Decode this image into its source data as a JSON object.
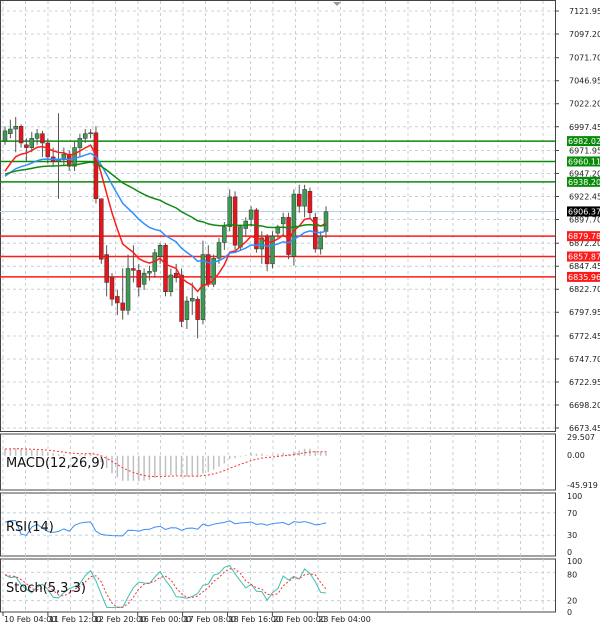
{
  "chart_data": {
    "type": "candlestick",
    "price_axis": {
      "ticks": [
        "7121.95",
        "7097.20",
        "7071.70",
        "7046.95",
        "7022.20",
        "6997.45",
        "6971.95",
        "6947.20",
        "6922.45",
        "6897.70",
        "6872.20",
        "6847.45",
        "6822.70",
        "6797.95",
        "6772.45",
        "6747.70",
        "6722.95",
        "6698.20",
        "6673.45"
      ],
      "range": [
        6673.45,
        7121.95
      ]
    },
    "time_axis": [
      "10 Feb 04:00",
      "11 Feb 12:00",
      "12 Feb 20:00",
      "16 Feb 00:00",
      "17 Feb 08:00",
      "18 Feb 16:00",
      "20 Feb 00:00",
      "23 Feb 04:00"
    ],
    "grid": true,
    "current_price": {
      "value": 6906.37,
      "label": "6906.37",
      "color": "#000000"
    },
    "levels": [
      {
        "value": 6982.02,
        "label": "6982.02",
        "color": "#0a8a0a"
      },
      {
        "value": 6960.11,
        "label": "6960.11",
        "color": "#0a8a0a"
      },
      {
        "value": 6938.2,
        "label": "6938.20",
        "color": "#0a8a0a"
      },
      {
        "value": 6879.78,
        "label": "6879.78",
        "color": "#ff1a1a"
      },
      {
        "value": 6857.87,
        "label": "6857.87",
        "color": "#ff1a1a"
      },
      {
        "value": 6835.96,
        "label": "6835.96",
        "color": "#ff1a1a"
      }
    ],
    "candles": [
      [
        6982,
        6998,
        6978,
        6993
      ],
      [
        6990,
        7005,
        6985,
        6995
      ],
      [
        6995,
        7008,
        6970,
        6998
      ],
      [
        6998,
        7000,
        6975,
        6980
      ],
      [
        6978,
        6985,
        6960,
        6975
      ],
      [
        6975,
        6992,
        6970,
        6985
      ],
      [
        6985,
        6995,
        6978,
        6990
      ],
      [
        6990,
        6993,
        6965,
        6980
      ],
      [
        6980,
        6985,
        6958,
        6965
      ],
      [
        6965,
        6975,
        6955,
        6960
      ],
      [
        6960,
        7012,
        6920,
        6962
      ],
      [
        6962,
        6975,
        6955,
        6968
      ],
      [
        6968,
        6972,
        6950,
        6955
      ],
      [
        6955,
        6982,
        6950,
        6975
      ],
      [
        6975,
        6990,
        6965,
        6985
      ],
      [
        6985,
        6995,
        6980,
        6990
      ],
      [
        6990,
        6995,
        6985,
        6991
      ],
      [
        6991,
        6998,
        6915,
        6920
      ],
      [
        6920,
        6920,
        6850,
        6855
      ],
      [
        6860,
        6870,
        6815,
        6830
      ],
      [
        6835,
        6840,
        6805,
        6812
      ],
      [
        6815,
        6822,
        6795,
        6808
      ],
      [
        6808,
        6845,
        6790,
        6800
      ],
      [
        6800,
        6860,
        6795,
        6845
      ],
      [
        6845,
        6870,
        6830,
        6843
      ],
      [
        6843,
        6850,
        6815,
        6825
      ],
      [
        6828,
        6845,
        6822,
        6840
      ],
      [
        6840,
        6848,
        6832,
        6842
      ],
      [
        6842,
        6866,
        6835,
        6862
      ],
      [
        6858,
        6872,
        6850,
        6870
      ],
      [
        6870,
        6872,
        6815,
        6820
      ],
      [
        6820,
        6845,
        6815,
        6838
      ],
      [
        6840,
        6850,
        6830,
        6835
      ],
      [
        6838,
        6845,
        6782,
        6788
      ],
      [
        6790,
        6815,
        6780,
        6810
      ],
      [
        6810,
        6830,
        6795,
        6813
      ],
      [
        6812,
        6815,
        6770,
        6790
      ],
      [
        6790,
        6875,
        6785,
        6860
      ],
      [
        6860,
        6870,
        6825,
        6828
      ],
      [
        6828,
        6860,
        6825,
        6856
      ],
      [
        6856,
        6878,
        6850,
        6873
      ],
      [
        6873,
        6895,
        6865,
        6890
      ],
      [
        6890,
        6930,
        6885,
        6922
      ],
      [
        6922,
        6928,
        6865,
        6870
      ],
      [
        6868,
        6892,
        6865,
        6890
      ],
      [
        6888,
        6900,
        6880,
        6896
      ],
      [
        6898,
        6912,
        6890,
        6908
      ],
      [
        6908,
        6910,
        6862,
        6866
      ],
      [
        6866,
        6885,
        6850,
        6878
      ],
      [
        6880,
        6882,
        6842,
        6850
      ],
      [
        6850,
        6885,
        6845,
        6880
      ],
      [
        6883,
        6892,
        6878,
        6890
      ],
      [
        6893,
        6905,
        6880,
        6900
      ],
      [
        6900,
        6905,
        6855,
        6860
      ],
      [
        6858,
        6930,
        6848,
        6925
      ],
      [
        6925,
        6935,
        6905,
        6912
      ],
      [
        6912,
        6935,
        6900,
        6930
      ],
      [
        6928,
        6932,
        6900,
        6905
      ],
      [
        6900,
        6905,
        6862,
        6866
      ],
      [
        6866,
        6885,
        6860,
        6880
      ],
      [
        6885,
        6912,
        6878,
        6906
      ]
    ],
    "moving_averages": [
      {
        "color": "#ff1a1a",
        "period": 10
      },
      {
        "color": "#2f8fff",
        "period": 24
      },
      {
        "color": "#108a10",
        "period": 60
      }
    ],
    "indicators": {
      "macd": {
        "label": "MACD(12,26,9)",
        "ticks": [
          "29.507",
          "0.00",
          "-45.919"
        ],
        "range": [
          -45.919,
          29.507
        ]
      },
      "rsi": {
        "label": "RSI(14)",
        "ticks": [
          "100",
          "70",
          "30",
          "0"
        ]
      },
      "stoch": {
        "label": "Stoch(5,3,3)",
        "ticks": [
          "100",
          "80",
          "20",
          "0"
        ]
      }
    }
  }
}
